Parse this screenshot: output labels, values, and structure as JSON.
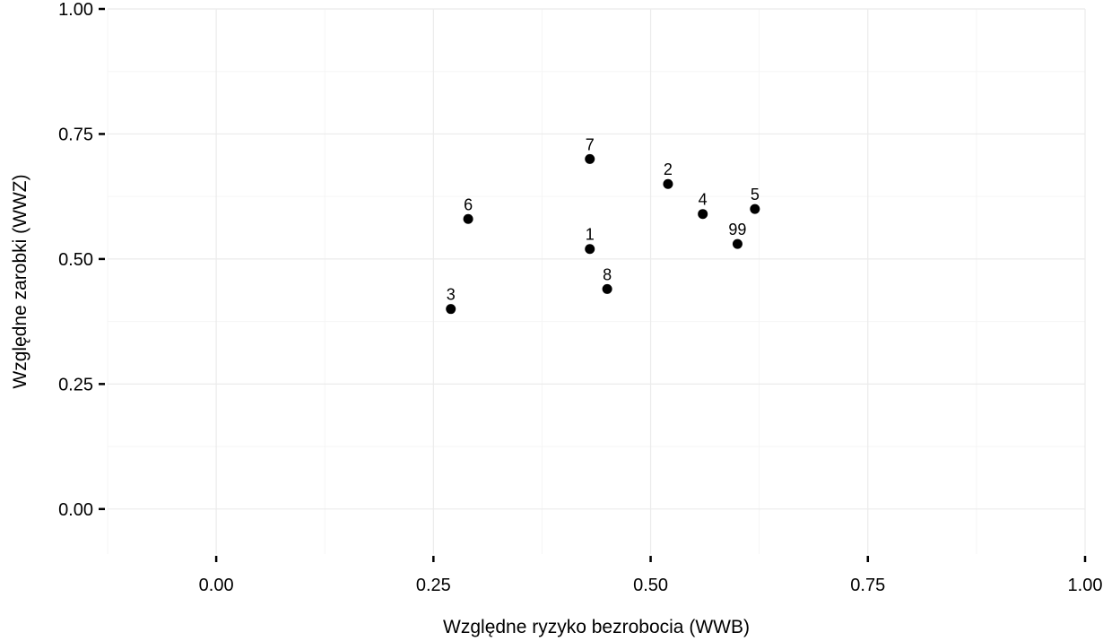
{
  "chart_data": {
    "type": "scatter",
    "title": "",
    "xlabel": "Względne ryzyko bezrobocia (WWB)",
    "ylabel": "Względne zarobki (WWZ)",
    "xlim": [
      -0.125,
      1.0
    ],
    "ylim": [
      -0.09,
      1.0
    ],
    "xticks": [
      "0.00",
      "0.25",
      "0.50",
      "0.75",
      "1.00"
    ],
    "yticks": [
      "0.00",
      "0.25",
      "0.50",
      "0.75",
      "1.00"
    ],
    "grid": true,
    "points": [
      {
        "label": "1",
        "x": 0.43,
        "y": 0.52
      },
      {
        "label": "2",
        "x": 0.52,
        "y": 0.65
      },
      {
        "label": "3",
        "x": 0.27,
        "y": 0.4
      },
      {
        "label": "4",
        "x": 0.56,
        "y": 0.59
      },
      {
        "label": "5",
        "x": 0.62,
        "y": 0.6
      },
      {
        "label": "6",
        "x": 0.29,
        "y": 0.58
      },
      {
        "label": "7",
        "x": 0.43,
        "y": 0.7
      },
      {
        "label": "8",
        "x": 0.45,
        "y": 0.44
      },
      {
        "label": "99",
        "x": 0.6,
        "y": 0.53
      }
    ],
    "colors": {
      "point": "#000000",
      "grid_major": "#ebebeb",
      "grid_minor": "#f5f5f5",
      "background": "#ffffff"
    }
  }
}
